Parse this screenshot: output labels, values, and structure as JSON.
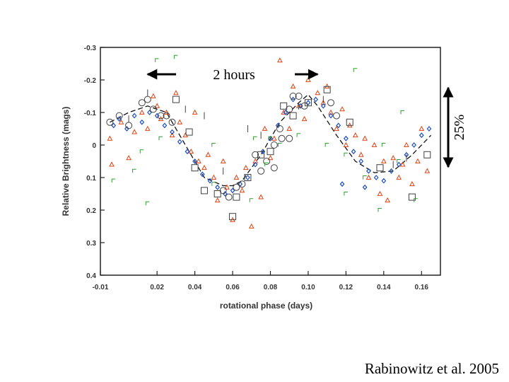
{
  "chart_data": {
    "type": "scatter",
    "title": "",
    "xlabel": "rotational phase (days)",
    "ylabel": "Relative Brightness (mags)",
    "xlim": [
      -0.01,
      0.17
    ],
    "ylim": [
      -0.3,
      0.4
    ],
    "y_inverted": true,
    "x_ticks": [
      -0.01,
      0.02,
      0.04,
      0.06,
      0.08,
      0.1,
      0.12,
      0.14,
      0.16
    ],
    "x_tick_labels": [
      "-0.01",
      "0.02",
      "0.04",
      "0.06",
      "0.08",
      "0.10",
      "0.12",
      "0.14",
      "0.16"
    ],
    "y_ticks": [
      -0.3,
      -0.2,
      -0.1,
      0,
      0.1,
      0.2,
      0.3,
      0.4
    ],
    "y_tick_labels": [
      "-0.3",
      "-0.2",
      "-0.1",
      "0",
      "0.1",
      "0.2",
      "0.3",
      "0.4"
    ],
    "grid": false,
    "annotations": {
      "period_label": "2 hours",
      "period_x_range": [
        0.015,
        0.105
      ],
      "amplitude_label": "25%",
      "amplitude_y_range": [
        -0.18,
        0.065
      ]
    },
    "fit_curve": {
      "x": [
        -0.005,
        0.005,
        0.015,
        0.025,
        0.035,
        0.045,
        0.055,
        0.06,
        0.065,
        0.075,
        0.085,
        0.095,
        0.1,
        0.105,
        0.115,
        0.125,
        0.135,
        0.145,
        0.155,
        0.165
      ],
      "y": [
        -0.07,
        -0.1,
        -0.12,
        -0.1,
        0.0,
        0.1,
        0.125,
        0.125,
        0.11,
        0.03,
        -0.07,
        -0.13,
        -0.155,
        -0.12,
        -0.03,
        0.05,
        0.085,
        0.08,
        0.03,
        -0.03
      ]
    },
    "series": [
      {
        "marker": "triangle",
        "color": "#e04010",
        "points": [
          [
            -0.005,
            -0.02
          ],
          [
            -0.004,
            0.06
          ],
          [
            0.001,
            -0.07
          ],
          [
            0.005,
            0.04
          ],
          [
            0.008,
            -0.04
          ],
          [
            0.012,
            -0.1
          ],
          [
            0.015,
            -0.05
          ],
          [
            0.018,
            -0.15
          ],
          [
            0.02,
            -0.12
          ],
          [
            0.022,
            -0.08
          ],
          [
            0.025,
            -0.1
          ],
          [
            0.028,
            -0.03
          ],
          [
            0.03,
            -0.16
          ],
          [
            0.032,
            -0.07
          ],
          [
            0.035,
            -0.03
          ],
          [
            0.038,
            0.02
          ],
          [
            0.04,
            -0.1
          ],
          [
            0.042,
            0.05
          ],
          [
            0.045,
            0.07
          ],
          [
            0.047,
            0.03
          ],
          [
            0.05,
            0.1
          ],
          [
            0.052,
            0.17
          ],
          [
            0.055,
            0.05
          ],
          [
            0.057,
            0.13
          ],
          [
            0.06,
            0.23
          ],
          [
            0.062,
            0.1
          ],
          [
            0.065,
            0.14
          ],
          [
            0.067,
            0.07
          ],
          [
            0.07,
            0.25
          ],
          [
            0.072,
            0.05
          ],
          [
            0.075,
            0.16
          ],
          [
            0.077,
            -0.05
          ],
          [
            0.08,
            0.04
          ],
          [
            0.082,
            -0.02
          ],
          [
            0.085,
            -0.26
          ],
          [
            0.087,
            -0.1
          ],
          [
            0.09,
            -0.05
          ],
          [
            0.092,
            -0.18
          ],
          [
            0.095,
            -0.12
          ],
          [
            0.098,
            -0.08
          ],
          [
            0.1,
            -0.2
          ],
          [
            0.105,
            -0.16
          ],
          [
            0.108,
            -0.13
          ],
          [
            0.11,
            -0.18
          ],
          [
            0.112,
            -0.1
          ],
          [
            0.115,
            -0.05
          ],
          [
            0.118,
            -0.11
          ],
          [
            0.12,
            0.0
          ],
          [
            0.122,
            -0.06
          ],
          [
            0.125,
            -0.03
          ],
          [
            0.128,
            0.03
          ],
          [
            0.13,
            -0.02
          ],
          [
            0.132,
            0.1
          ],
          [
            0.135,
            0.0
          ],
          [
            0.138,
            0.15
          ],
          [
            0.14,
            0.05
          ],
          [
            0.142,
            0.17
          ],
          [
            0.145,
            0.04
          ],
          [
            0.148,
            0.1
          ],
          [
            0.15,
            0.06
          ],
          [
            0.152,
            0.0
          ],
          [
            0.155,
            0.12
          ],
          [
            0.158,
            0.05
          ],
          [
            0.16,
            -0.05
          ],
          [
            0.163,
            0.08
          ]
        ]
      },
      {
        "marker": "diamond",
        "color": "#2050c0",
        "points": [
          [
            -0.003,
            -0.06
          ],
          [
            0.0,
            -0.08
          ],
          [
            0.004,
            -0.05
          ],
          [
            0.008,
            -0.09
          ],
          [
            0.012,
            -0.07
          ],
          [
            0.016,
            -0.1
          ],
          [
            0.02,
            -0.09
          ],
          [
            0.024,
            -0.06
          ],
          [
            0.028,
            -0.04
          ],
          [
            0.032,
            -0.01
          ],
          [
            0.036,
            0.02
          ],
          [
            0.04,
            0.05
          ],
          [
            0.044,
            0.09
          ],
          [
            0.048,
            0.11
          ],
          [
            0.052,
            0.13
          ],
          [
            0.056,
            0.15
          ],
          [
            0.06,
            0.14
          ],
          [
            0.064,
            0.12
          ],
          [
            0.068,
            0.1
          ],
          [
            0.072,
            0.06
          ],
          [
            0.076,
            0.02
          ],
          [
            0.08,
            -0.02
          ],
          [
            0.084,
            -0.06
          ],
          [
            0.088,
            -0.1
          ],
          [
            0.092,
            -0.14
          ],
          [
            0.096,
            -0.12
          ],
          [
            0.1,
            -0.13
          ],
          [
            0.104,
            -0.14
          ],
          [
            0.108,
            -0.12
          ],
          [
            0.112,
            -0.09
          ],
          [
            0.116,
            -0.06
          ],
          [
            0.12,
            -0.02
          ],
          [
            0.124,
            0.02
          ],
          [
            0.128,
            0.05
          ],
          [
            0.132,
            0.08
          ],
          [
            0.136,
            0.1
          ],
          [
            0.14,
            0.11
          ],
          [
            0.144,
            0.08
          ],
          [
            0.148,
            0.06
          ],
          [
            0.152,
            0.03
          ],
          [
            0.156,
            0.0
          ],
          [
            0.16,
            -0.03
          ],
          [
            0.164,
            -0.05
          ],
          [
            0.13,
            0.13
          ],
          [
            0.118,
            0.12
          ]
        ]
      },
      {
        "marker": "circle",
        "color": "#404040",
        "points": [
          [
            -0.005,
            -0.07
          ],
          [
            0.0,
            -0.09
          ],
          [
            0.005,
            -0.06
          ],
          [
            0.012,
            -0.13
          ],
          [
            0.015,
            -0.14
          ],
          [
            0.018,
            -0.11
          ],
          [
            0.022,
            -0.09
          ],
          [
            0.025,
            -0.09
          ],
          [
            0.028,
            -0.07
          ],
          [
            0.055,
            0.14
          ],
          [
            0.058,
            0.16
          ],
          [
            0.062,
            0.13
          ],
          [
            0.065,
            0.12
          ],
          [
            0.072,
            0.03
          ],
          [
            0.075,
            0.08
          ],
          [
            0.078,
            0.05
          ],
          [
            0.082,
            0.0
          ],
          [
            0.085,
            -0.05
          ],
          [
            0.09,
            -0.11
          ],
          [
            0.092,
            -0.15
          ],
          [
            0.098,
            -0.12
          ],
          [
            0.112,
            -0.13
          ],
          [
            0.115,
            -0.09
          ],
          [
            0.082,
            0.07
          ],
          [
            0.086,
            -0.02
          ],
          [
            0.09,
            -0.02
          ],
          [
            0.095,
            -0.15
          ]
        ]
      },
      {
        "marker": "square",
        "color": "#404040",
        "points": [
          [
            0.03,
            -0.14
          ],
          [
            0.037,
            -0.04
          ],
          [
            0.04,
            0.07
          ],
          [
            0.045,
            0.14
          ],
          [
            0.052,
            0.15
          ],
          [
            0.06,
            0.22
          ],
          [
            0.062,
            0.16
          ],
          [
            0.068,
            0.1
          ],
          [
            0.075,
            0.03
          ],
          [
            0.08,
            0.02
          ],
          [
            0.087,
            -0.12
          ],
          [
            0.092,
            -0.09
          ],
          [
            0.1,
            -0.13
          ],
          [
            0.11,
            -0.17
          ],
          [
            0.122,
            -0.07
          ],
          [
            0.138,
            0.07
          ],
          [
            0.155,
            0.16
          ],
          [
            0.163,
            0.03
          ]
        ]
      },
      {
        "marker": "bracket",
        "color": "#30a030",
        "points": [
          [
            0.02,
            -0.26
          ],
          [
            0.03,
            -0.27
          ],
          [
            0.05,
            0.0
          ],
          [
            0.072,
            -0.02
          ],
          [
            0.08,
            -0.02
          ],
          [
            0.085,
            0.0
          ],
          [
            0.095,
            -0.03
          ],
          [
            0.11,
            0.0
          ],
          [
            0.12,
            0.03
          ],
          [
            0.125,
            -0.23
          ],
          [
            0.13,
            0.1
          ],
          [
            0.14,
            0.0
          ],
          [
            0.15,
            -0.1
          ],
          [
            0.157,
            0.17
          ],
          [
            -0.003,
            0.11
          ],
          [
            0.008,
            0.08
          ],
          [
            0.012,
            0.02
          ],
          [
            0.015,
            0.18
          ],
          [
            0.022,
            -0.02
          ],
          [
            0.05,
            0.12
          ],
          [
            0.07,
            0.17
          ],
          [
            0.078,
            0.06
          ],
          [
            0.12,
            0.15
          ],
          [
            0.138,
            0.2
          ],
          [
            0.148,
            0.05
          ]
        ]
      },
      {
        "marker": "tick",
        "color": "#404040",
        "points": [
          [
            0.005,
            -0.08
          ],
          [
            0.015,
            -0.16
          ],
          [
            0.035,
            -0.11
          ],
          [
            0.045,
            -0.09
          ],
          [
            0.055,
            0.08
          ],
          [
            0.068,
            -0.05
          ],
          [
            0.075,
            -0.03
          ],
          [
            0.095,
            -0.12
          ],
          [
            0.108,
            -0.14
          ],
          [
            0.145,
            0.06
          ],
          [
            0.152,
            0.04
          ]
        ]
      }
    ]
  },
  "credit": "Rabinowitz et al. 2005"
}
